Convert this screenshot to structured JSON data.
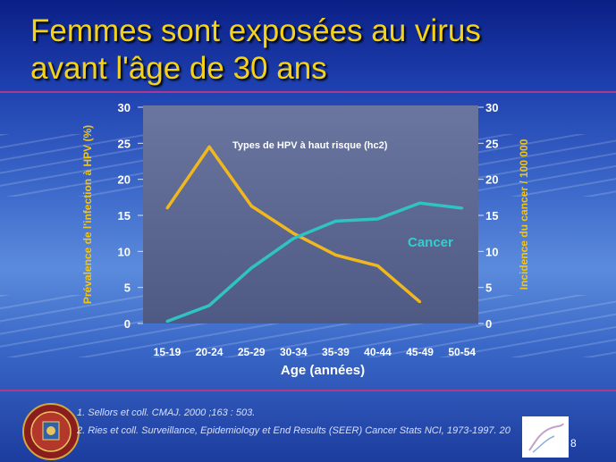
{
  "slide": {
    "title_lines": [
      "Femmes sont exposées au virus",
      "avant l'âge de 30 ans"
    ],
    "references": [
      "1. Sellors et coll. CMAJ. 2000 ;163 : 503.",
      "2. Ries et coll. Surveillance, Epidemiology et End Results (SEER) Cancer Stats NCI, 1973-1997. 20"
    ],
    "page_number": "8",
    "colors": {
      "title": "#f5d21a",
      "rule": "#b0388a",
      "plot_bg": "#5d6b92",
      "hpv_series": "#f1b81e",
      "cancer_series": "#2fc3c3"
    }
  },
  "chart_data": {
    "type": "line",
    "title": "Types de HPV à haut risque (hc2)",
    "xlabel": "Age (années)",
    "ylabel_left": "Prévalence de l'infection à HPV (%)",
    "ylabel_right": "Incidence du cancer / 100 000",
    "categories": [
      "15-19",
      "20-24",
      "25-29",
      "30-34",
      "35-39",
      "40-44",
      "45-49",
      "50-54"
    ],
    "ylim_left": [
      0,
      30
    ],
    "ylim_right": [
      0,
      30
    ],
    "yticks_left": [
      0,
      5,
      10,
      15,
      20,
      25,
      30
    ],
    "yticks_right": [
      0,
      5,
      10,
      15,
      20,
      25,
      30
    ],
    "series": [
      {
        "name": "",
        "axis": "left",
        "color": "#f1b81e",
        "values": [
          16,
          24.5,
          16.3,
          12.5,
          9.5,
          8,
          3,
          null
        ]
      },
      {
        "name": "Cancer",
        "axis": "right",
        "color": "#2fc3c3",
        "values": [
          0.3,
          2.5,
          7.7,
          11.8,
          14.2,
          14.5,
          16.7,
          16
        ]
      }
    ],
    "grid": false
  }
}
